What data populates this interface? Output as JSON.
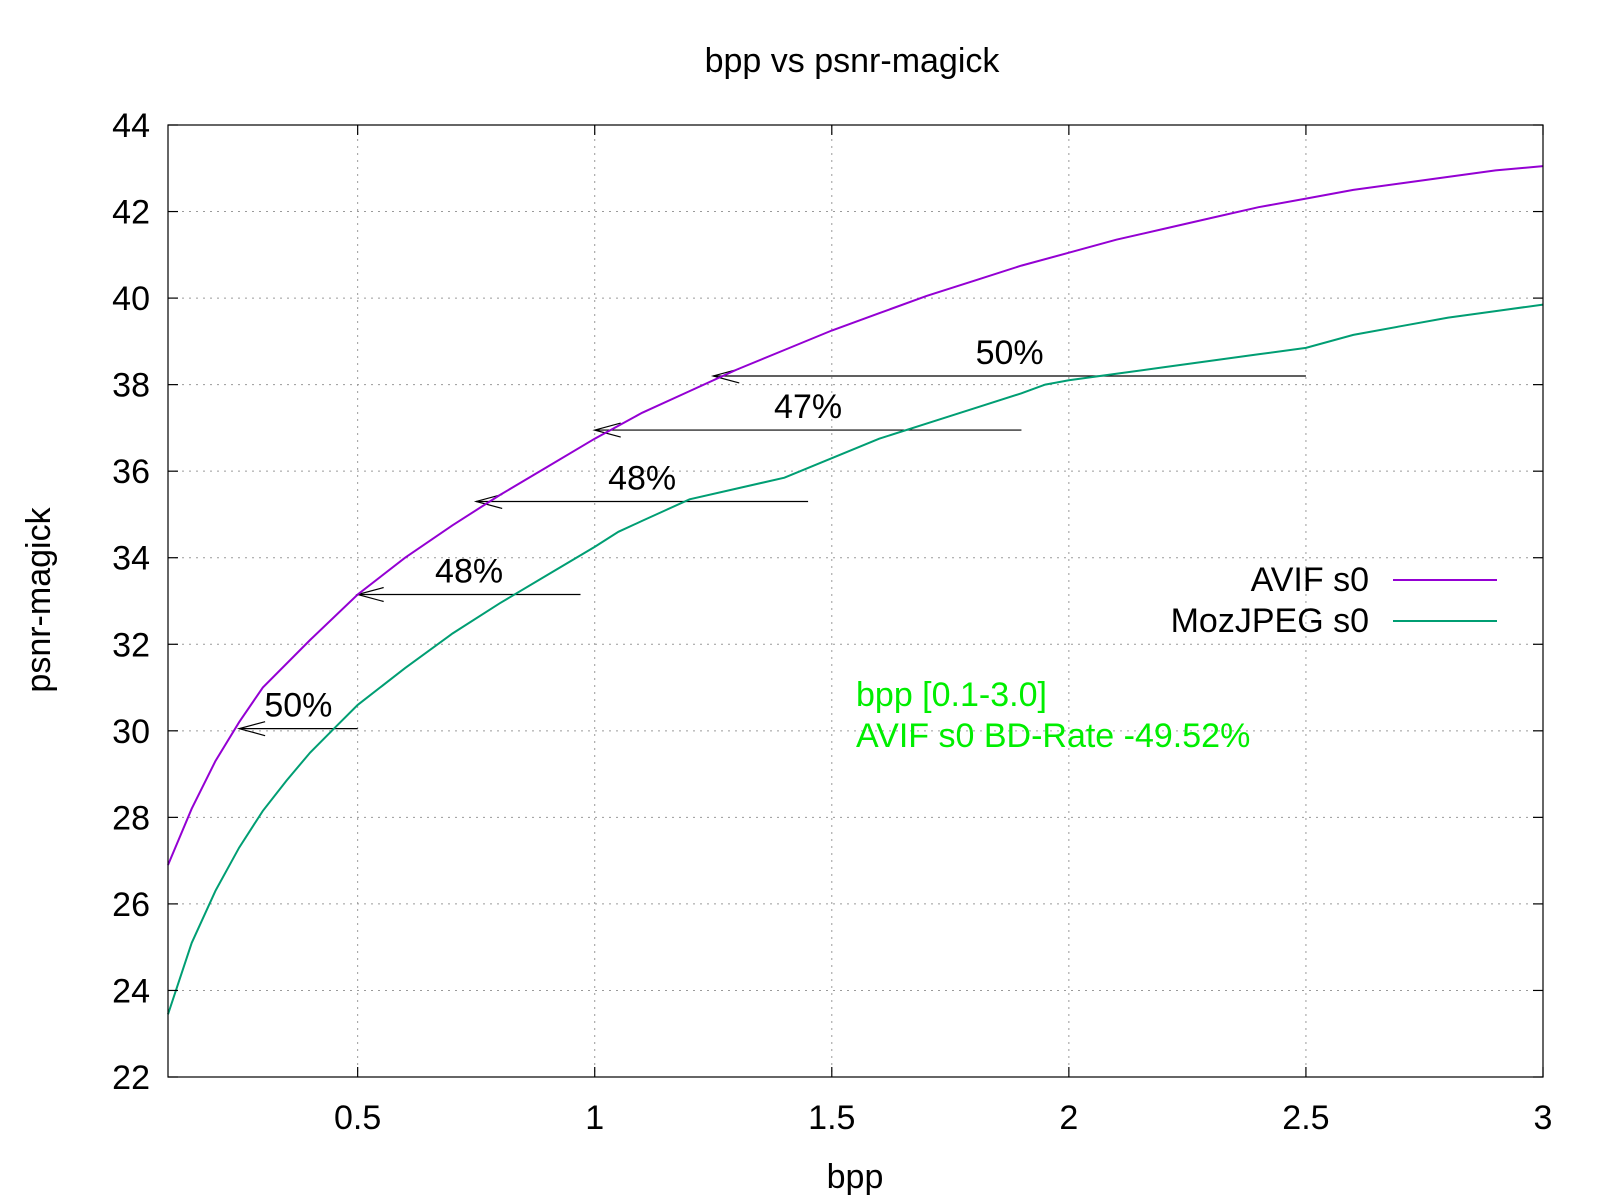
{
  "chart_data": {
    "type": "line",
    "title": "bpp vs psnr-magick",
    "xlabel": "bpp",
    "ylabel": "psnr-magick",
    "xlim": [
      0.1,
      3.0
    ],
    "ylim": [
      22,
      44
    ],
    "x_ticks": [
      0.5,
      1,
      1.5,
      2,
      2.5,
      3
    ],
    "x_tick_labels": [
      "0.5",
      "1",
      "1.5",
      "2",
      "2.5",
      "3"
    ],
    "y_ticks": [
      22,
      24,
      26,
      28,
      30,
      32,
      34,
      36,
      38,
      40,
      42,
      44
    ],
    "y_tick_labels": [
      "22",
      "24",
      "26",
      "28",
      "30",
      "32",
      "34",
      "36",
      "38",
      "40",
      "42",
      "44"
    ],
    "grid": true,
    "legend_position": "right",
    "series": [
      {
        "name": "AVIF s0",
        "color": "#9400d3",
        "x": [
          0.1,
          0.15,
          0.2,
          0.25,
          0.3,
          0.4,
          0.5,
          0.6,
          0.7,
          0.8,
          0.9,
          1.0,
          1.1,
          1.2,
          1.3,
          1.4,
          1.5,
          1.6,
          1.7,
          1.8,
          1.9,
          2.0,
          2.1,
          2.2,
          2.3,
          2.4,
          2.5,
          2.6,
          2.7,
          2.8,
          2.9,
          3.0
        ],
        "y": [
          26.9,
          28.2,
          29.3,
          30.2,
          31.0,
          32.1,
          33.15,
          34.0,
          34.75,
          35.45,
          36.1,
          36.75,
          37.35,
          37.85,
          38.35,
          38.8,
          39.25,
          39.65,
          40.05,
          40.4,
          40.75,
          41.05,
          41.35,
          41.6,
          41.85,
          42.1,
          42.3,
          42.5,
          42.65,
          42.8,
          42.95,
          43.05
        ]
      },
      {
        "name": "MozJPEG s0",
        "color": "#009e73",
        "x": [
          0.1,
          0.15,
          0.2,
          0.25,
          0.3,
          0.35,
          0.4,
          0.45,
          0.5,
          0.6,
          0.7,
          0.8,
          0.9,
          1.0,
          1.05,
          1.1,
          1.15,
          1.2,
          1.3,
          1.4,
          1.5,
          1.6,
          1.7,
          1.8,
          1.9,
          1.95,
          2.0,
          2.1,
          2.2,
          2.3,
          2.4,
          2.5,
          2.6,
          2.7,
          2.8,
          2.9,
          3.0
        ],
        "y": [
          23.45,
          25.1,
          26.3,
          27.3,
          28.15,
          28.85,
          29.5,
          30.05,
          30.6,
          31.45,
          32.25,
          32.95,
          33.6,
          34.25,
          34.6,
          34.85,
          35.1,
          35.35,
          35.6,
          35.85,
          36.3,
          36.75,
          37.1,
          37.45,
          37.8,
          38.0,
          38.1,
          38.25,
          38.4,
          38.55,
          38.7,
          38.85,
          39.15,
          39.35,
          39.55,
          39.7,
          39.85
        ]
      }
    ],
    "annotations": [
      {
        "label": "50%",
        "y": 30.05,
        "x_from": 0.5,
        "x_to": 0.25
      },
      {
        "label": "48%",
        "y": 33.15,
        "x_from": 0.97,
        "x_to": 0.5
      },
      {
        "label": "48%",
        "y": 35.3,
        "x_from": 1.45,
        "x_to": 0.75
      },
      {
        "label": "47%",
        "y": 36.95,
        "x_from": 1.9,
        "x_to": 1.0
      },
      {
        "label": "50%",
        "y": 38.2,
        "x_from": 2.5,
        "x_to": 1.25
      }
    ],
    "note_lines": [
      "bpp [0.1-3.0]",
      "AVIF s0 BD-Rate -49.52%"
    ],
    "note_color": "#00ee00"
  }
}
